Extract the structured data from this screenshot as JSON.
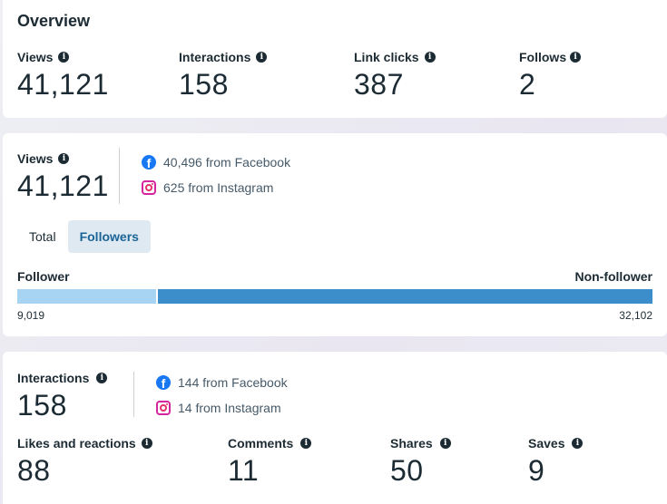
{
  "overview": {
    "title": "Overview",
    "metrics": [
      {
        "label": "Views",
        "value": "41,121"
      },
      {
        "label": "Interactions",
        "value": "158"
      },
      {
        "label": "Link clicks",
        "value": "387"
      },
      {
        "label": "Follows",
        "value": "2"
      }
    ]
  },
  "views_card": {
    "label": "Views",
    "value": "41,121",
    "sources": [
      {
        "icon": "facebook-icon",
        "text": "40,496 from Facebook"
      },
      {
        "icon": "instagram-icon",
        "text": "625 from Instagram"
      }
    ],
    "tabs": [
      {
        "label": "Total",
        "active": false
      },
      {
        "label": "Followers",
        "active": true
      }
    ],
    "breakdown": {
      "left_label": "Follower",
      "right_label": "Non-follower",
      "left_count": "9,019",
      "right_count": "32,102",
      "left_value": 9019,
      "right_value": 32102,
      "left_color": "#a6d4f2",
      "right_color": "#3b8ec9"
    }
  },
  "interactions_card": {
    "label": "Interactions",
    "value": "158",
    "sources": [
      {
        "icon": "facebook-icon",
        "text": "144 from Facebook"
      },
      {
        "icon": "instagram-icon",
        "text": "14 from Instagram"
      }
    ],
    "metrics": [
      {
        "label": "Likes and reactions",
        "value": "88"
      },
      {
        "label": "Comments",
        "value": "11"
      },
      {
        "label": "Shares",
        "value": "50"
      },
      {
        "label": "Saves",
        "value": "9"
      }
    ]
  },
  "colors": {
    "text": "#1c2b33",
    "secondary_text": "#465a69",
    "facebook": "#1877f2",
    "active_tab_bg": "#dfe9f2",
    "active_tab_text": "#1a6496"
  }
}
